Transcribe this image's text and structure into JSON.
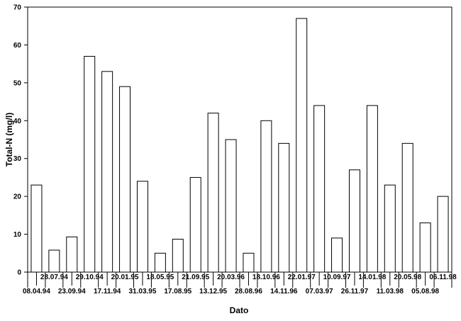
{
  "chart_data": {
    "type": "bar",
    "title": "",
    "xlabel": "Dato",
    "ylabel": "Total-N (mg/l)",
    "ylim": [
      0,
      70
    ],
    "yticks": [
      0,
      10,
      20,
      30,
      40,
      50,
      60,
      70
    ],
    "grid": false,
    "legend": "none",
    "bar_fill": "#ffffff",
    "bar_stroke": "#000000",
    "categories": [
      "08.04.94",
      "28.07.94",
      "23.09.94",
      "29.10.94",
      "17.11.94",
      "20.01.95",
      "31.03.95",
      "18.05.95",
      "17.08.95",
      "21.09.95",
      "13.12.95",
      "20.03.96",
      "28.08.96",
      "18.10.96",
      "14.11.96",
      "22.01.97",
      "07.03.97",
      "10.09.97",
      "26.11.97",
      "14.01.98",
      "11.03.98",
      "20.05.98",
      "05.08.98",
      "06.11.98"
    ],
    "values": [
      23,
      5.8,
      9.3,
      57,
      53,
      49,
      24,
      5,
      8.7,
      25,
      42,
      35,
      5,
      40,
      34,
      67,
      44,
      9,
      27,
      44,
      23,
      34,
      13,
      20
    ]
  }
}
